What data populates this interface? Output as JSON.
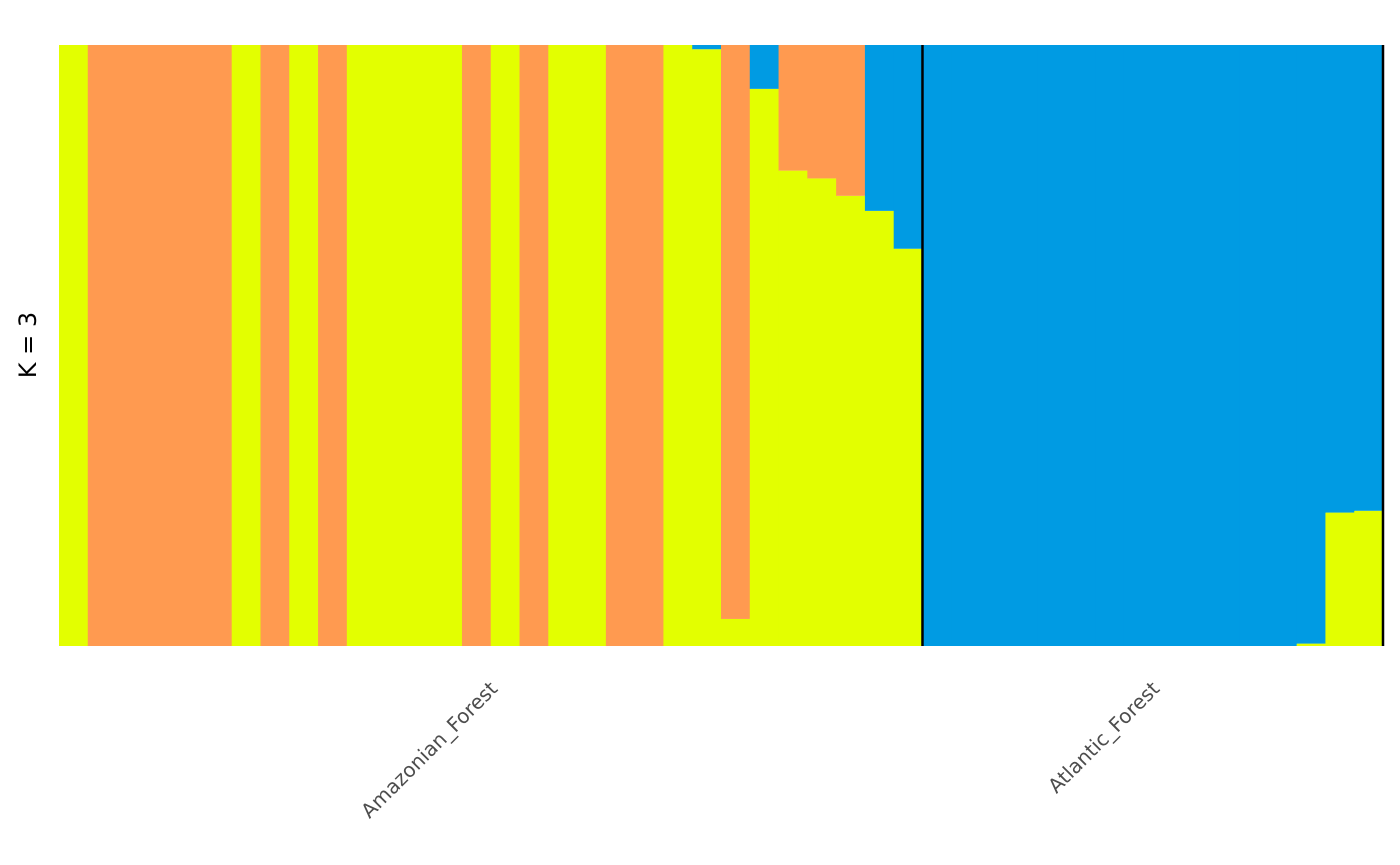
{
  "chart_data": {
    "type": "bar",
    "stacked": true,
    "ylabel": "K  =  3",
    "ylim": [
      0,
      1
    ],
    "grid": false,
    "legend": "none",
    "series": [
      {
        "color": "#E3FF00"
      },
      {
        "color": "#FF9A50"
      },
      {
        "color": "#009BE3"
      }
    ],
    "groups": [
      {
        "label": "Amazonian_Forest",
        "individuals": [
          [
            1,
            0,
            0
          ],
          [
            0,
            1,
            0
          ],
          [
            0,
            1,
            0
          ],
          [
            0,
            1,
            0
          ],
          [
            0,
            1,
            0
          ],
          [
            0,
            1,
            0
          ],
          [
            1,
            0,
            0
          ],
          [
            0,
            1,
            0
          ],
          [
            1,
            0,
            0
          ],
          [
            0,
            1,
            0
          ],
          [
            1,
            0,
            0
          ],
          [
            1,
            0,
            0
          ],
          [
            1,
            0,
            0
          ],
          [
            1,
            0,
            0
          ],
          [
            0,
            1,
            0
          ],
          [
            1,
            0,
            0
          ],
          [
            0,
            1,
            0
          ],
          [
            1,
            0,
            0
          ],
          [
            1,
            0,
            0
          ],
          [
            0,
            1,
            0
          ],
          [
            0,
            1,
            0
          ],
          [
            1,
            0,
            0
          ],
          [
            0.993,
            0,
            0.007
          ],
          [
            0.045,
            0.955,
            0
          ],
          [
            0.927,
            0,
            0.073
          ],
          [
            0.791,
            0.209,
            0
          ],
          [
            0.778,
            0.222,
            0
          ],
          [
            0.749,
            0.251,
            0
          ],
          [
            0.724,
            0,
            0.276
          ],
          [
            0.661,
            0,
            0.339
          ]
        ]
      },
      {
        "label": "Atlantic_Forest",
        "individuals": [
          [
            0,
            0,
            1
          ],
          [
            0,
            0,
            1
          ],
          [
            0,
            0,
            1
          ],
          [
            0,
            0,
            1
          ],
          [
            0,
            0,
            1
          ],
          [
            0,
            0,
            1
          ],
          [
            0,
            0,
            1
          ],
          [
            0,
            0,
            1
          ],
          [
            0,
            0,
            1
          ],
          [
            0,
            0,
            1
          ],
          [
            0,
            0,
            1
          ],
          [
            0,
            0,
            1
          ],
          [
            0,
            0,
            1
          ],
          [
            0.004,
            0,
            0.996
          ],
          [
            0.222,
            0,
            0.778
          ],
          [
            0.225,
            0,
            0.775
          ]
        ]
      }
    ]
  }
}
